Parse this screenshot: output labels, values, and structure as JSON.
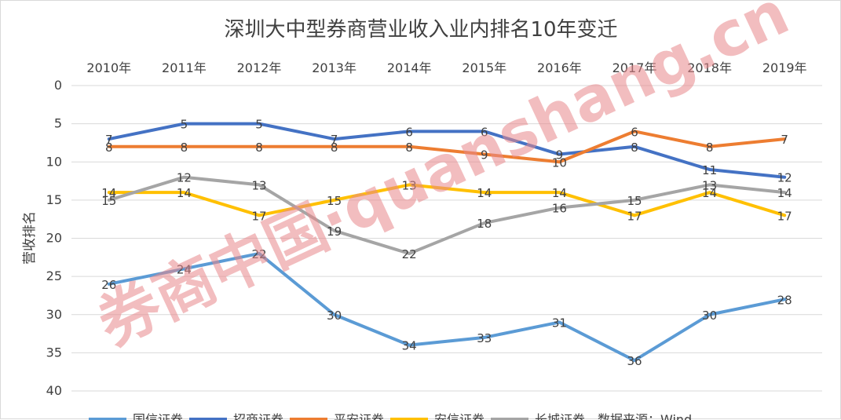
{
  "chart_data": {
    "type": "line",
    "title": "深圳大中型券商营业收入业内排名10年变迁",
    "ylabel": "营收排名",
    "xlabel": "",
    "categories": [
      "2010年",
      "2011年",
      "2012年",
      "2013年",
      "2014年",
      "2015年",
      "2016年",
      "2017年",
      "2018年",
      "2019年"
    ],
    "x_axis_position": "top",
    "y_reversed": true,
    "ylim": [
      0,
      40
    ],
    "yticks": [
      0,
      5,
      10,
      15,
      20,
      25,
      30,
      35,
      40
    ],
    "grid": true,
    "legend_position": "bottom",
    "series": [
      {
        "name": "国信证券",
        "color": "#5b9bd5",
        "values": [
          26,
          24,
          22,
          30,
          34,
          33,
          31,
          36,
          30,
          28
        ]
      },
      {
        "name": "招商证券",
        "color": "#4472c4",
        "values": [
          7,
          5,
          5,
          7,
          6,
          6,
          9,
          8,
          11,
          12
        ]
      },
      {
        "name": "平安证券",
        "color": "#ed7d31",
        "values": [
          8,
          8,
          8,
          8,
          8,
          9,
          10,
          6,
          8,
          7
        ]
      },
      {
        "name": "安信证券",
        "color": "#ffc000",
        "values": [
          14,
          14,
          17,
          15,
          13,
          14,
          14,
          17,
          14,
          17
        ]
      },
      {
        "name": "长城证券",
        "color": "#a5a5a5",
        "values": [
          15,
          12,
          13,
          19,
          22,
          18,
          16,
          15,
          13,
          14
        ]
      }
    ],
    "source_note": "数据来源：Wind"
  },
  "watermark": "券商中国·quanshang.cn"
}
